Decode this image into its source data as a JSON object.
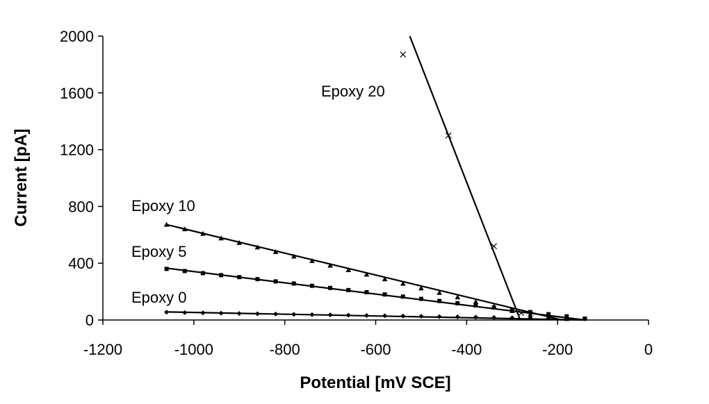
{
  "chart_data": {
    "type": "scatter",
    "title": "",
    "xlabel": "Potential [mV SCE]",
    "ylabel": "Current [pA]",
    "xlim": [
      -1200,
      0
    ],
    "ylim": [
      0,
      2000
    ],
    "xticks": [
      -1200,
      -1000,
      -800,
      -600,
      -400,
      -200,
      0
    ],
    "yticks": [
      0,
      400,
      800,
      1200,
      1600,
      2000
    ],
    "xtick_labels": [
      "-1200",
      "-1000",
      "-800",
      "-600",
      "-400",
      "-200",
      "0"
    ],
    "ytick_labels": [
      "0",
      "400",
      "800",
      "1200",
      "1600",
      "2000"
    ],
    "grid": false,
    "legend": "none",
    "series": [
      {
        "name": "Epoxy 0",
        "marker": "diamond",
        "x": [
          -1060,
          -1020,
          -980,
          -940,
          -900,
          -860,
          -820,
          -780,
          -740,
          -700,
          -660,
          -620,
          -580,
          -540,
          -500,
          -460,
          -420,
          -380,
          -340,
          -300,
          -260,
          -220,
          -180,
          -140
        ],
        "y": [
          55,
          52,
          50,
          48,
          46,
          44,
          42,
          40,
          38,
          36,
          34,
          32,
          30,
          28,
          26,
          24,
          22,
          20,
          18,
          16,
          14,
          12,
          10,
          8
        ],
        "fit": {
          "x": [
            -1060,
            -140
          ],
          "y": [
            57,
            0
          ]
        }
      },
      {
        "name": "Epoxy 5",
        "marker": "square",
        "x": [
          -1060,
          -1020,
          -980,
          -940,
          -900,
          -860,
          -820,
          -780,
          -740,
          -700,
          -660,
          -620,
          -580,
          -540,
          -500,
          -460,
          -420,
          -380,
          -340,
          -300,
          -260,
          -220,
          -180,
          -140
        ],
        "y": [
          360,
          345,
          330,
          316,
          302,
          288,
          272,
          257,
          241,
          226,
          211,
          196,
          180,
          165,
          149,
          134,
          118,
          103,
          88,
          72,
          56,
          41,
          26,
          10
        ],
        "fit": {
          "x": [
            -1060,
            -140
          ],
          "y": [
            365,
            0
          ]
        }
      },
      {
        "name": "Epoxy 10",
        "marker": "triangle",
        "x": [
          -1060,
          -1020,
          -980,
          -940,
          -900,
          -860,
          -820,
          -780,
          -740,
          -700,
          -660,
          -620,
          -580,
          -540,
          -500,
          -460,
          -420,
          -380,
          -340,
          -300,
          -260,
          -220,
          -180
        ],
        "y": [
          672,
          640,
          608,
          576,
          544,
          512,
          480,
          448,
          416,
          384,
          352,
          320,
          288,
          256,
          224,
          192,
          160,
          128,
          96,
          64,
          38,
          20,
          8
        ],
        "fit": {
          "x": [
            -1060,
            -190
          ],
          "y": [
            672,
            0
          ]
        }
      },
      {
        "name": "Epoxy 20",
        "marker": "x",
        "x": [
          -540,
          -440,
          -340,
          -280
        ],
        "y": [
          1870,
          1300,
          520,
          50
        ],
        "fit": {
          "x": [
            -525,
            -282
          ],
          "y": [
            2000,
            0
          ]
        }
      }
    ]
  }
}
